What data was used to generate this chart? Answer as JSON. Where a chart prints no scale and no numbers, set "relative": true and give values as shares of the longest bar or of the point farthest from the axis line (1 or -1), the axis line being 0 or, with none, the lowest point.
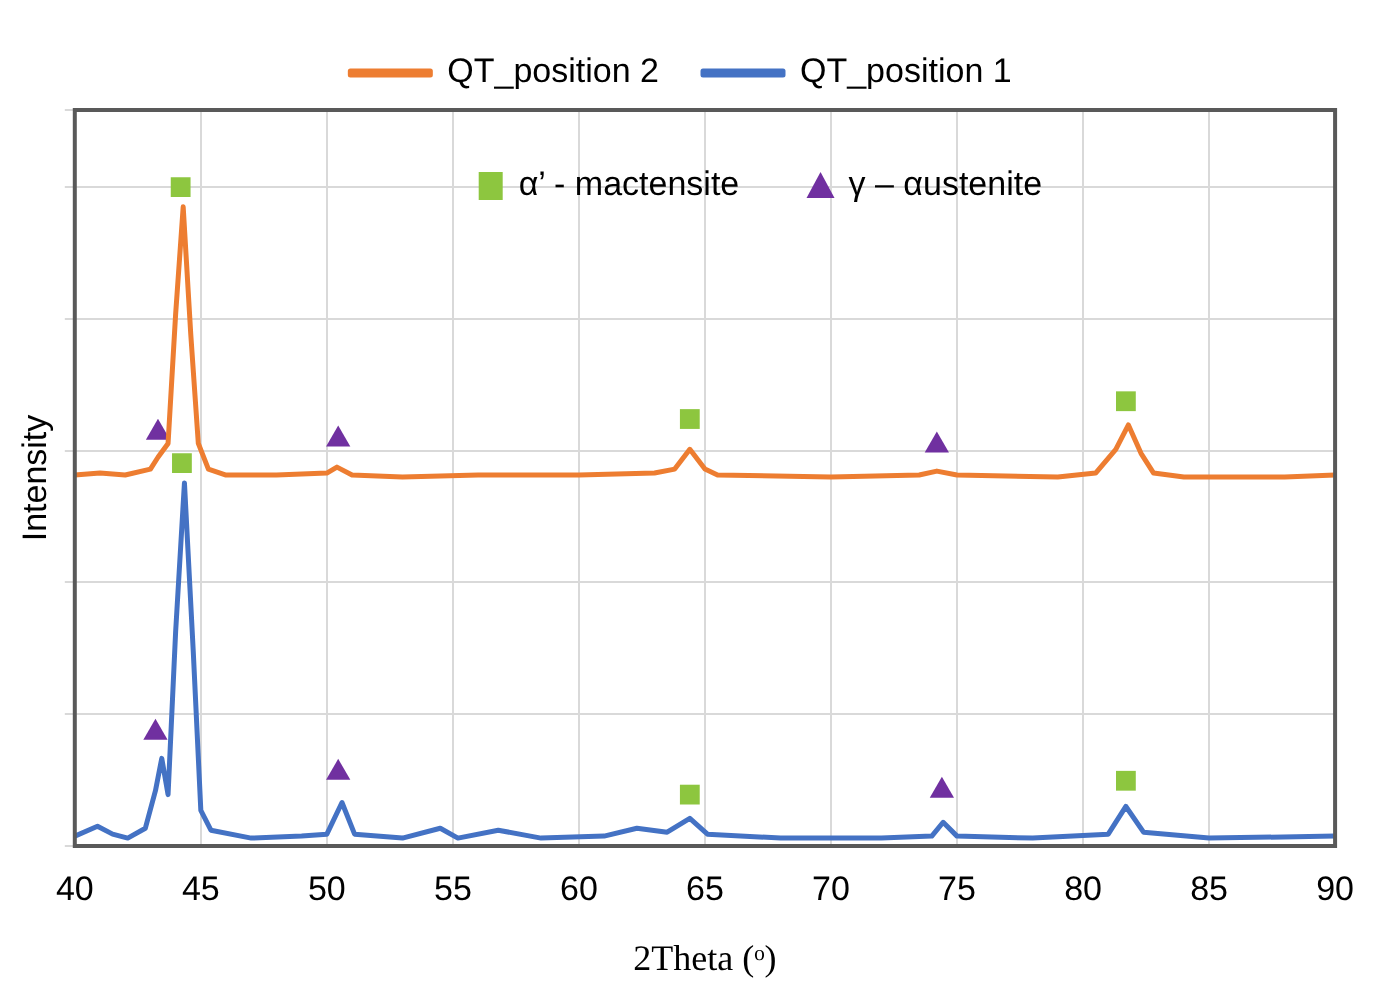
{
  "chart_data": {
    "type": "line",
    "relative": true,
    "xlabel": "2Theta (ᵒ)",
    "ylabel": "Intensity",
    "xlim": [
      40,
      90
    ],
    "xticks": [
      40,
      45,
      50,
      55,
      60,
      65,
      70,
      75,
      80,
      85,
      90
    ],
    "grid": true,
    "legend": "top",
    "series": [
      {
        "name": "QT_position 2",
        "type": "line",
        "color": "#ed7d31",
        "marker": "none",
        "x": [
          40,
          41,
          42,
          43,
          43.3,
          43.7,
          44.0,
          44.3,
          44.6,
          44.9,
          45.3,
          46,
          48,
          50.0,
          50.4,
          51,
          53,
          56,
          60,
          63,
          63.8,
          64.4,
          65.0,
          65.5,
          70,
          73.5,
          74.2,
          75,
          79,
          80.5,
          81.3,
          81.8,
          82.3,
          82.8,
          84,
          88,
          90
        ],
        "values": [
          0.563,
          0.566,
          0.563,
          0.572,
          0.59,
          0.611,
          0.807,
          0.97,
          0.777,
          0.611,
          0.572,
          0.563,
          0.563,
          0.566,
          0.575,
          0.563,
          0.56,
          0.563,
          0.563,
          0.566,
          0.572,
          0.602,
          0.572,
          0.563,
          0.56,
          0.563,
          0.569,
          0.563,
          0.56,
          0.566,
          0.602,
          0.639,
          0.596,
          0.566,
          0.56,
          0.56,
          0.563
        ]
      },
      {
        "name": "QT_position 1",
        "type": "line",
        "color": "#4472c4",
        "marker": "none",
        "x": [
          40,
          40.9,
          41.5,
          42.1,
          42.8,
          43.2,
          43.45,
          43.7,
          44.0,
          44.35,
          44.7,
          45.0,
          45.4,
          47,
          49,
          50.0,
          50.6,
          51.1,
          53,
          54.5,
          55.2,
          56.8,
          58.5,
          61,
          62.3,
          63.5,
          64.4,
          65.1,
          68,
          72,
          74.0,
          74.45,
          75.0,
          78,
          81.0,
          81.7,
          82.4,
          85,
          90
        ],
        "values": [
          0.015,
          0.03,
          0.018,
          0.012,
          0.027,
          0.084,
          0.133,
          0.078,
          0.325,
          0.551,
          0.295,
          0.054,
          0.024,
          0.012,
          0.015,
          0.018,
          0.066,
          0.018,
          0.012,
          0.027,
          0.012,
          0.024,
          0.012,
          0.015,
          0.027,
          0.021,
          0.042,
          0.018,
          0.012,
          0.012,
          0.015,
          0.036,
          0.015,
          0.012,
          0.018,
          0.06,
          0.021,
          0.012,
          0.015
        ]
      },
      {
        "name": "α’ - mactensite",
        "type": "scatter",
        "color": "#8dc63f",
        "marker": "square",
        "x": [
          44.2,
          64.4,
          81.7,
          44.25,
          64.4,
          81.7
        ],
        "values": [
          1.0,
          0.648,
          0.675,
          0.581,
          0.078,
          0.099
        ]
      },
      {
        "name": "γ – αustenite",
        "type": "scatter",
        "color": "#7030a0",
        "marker": "triangle",
        "x": [
          43.3,
          50.45,
          74.2,
          43.2,
          50.45,
          74.4
        ],
        "values": [
          0.627,
          0.617,
          0.608,
          0.172,
          0.111,
          0.084
        ]
      }
    ]
  }
}
